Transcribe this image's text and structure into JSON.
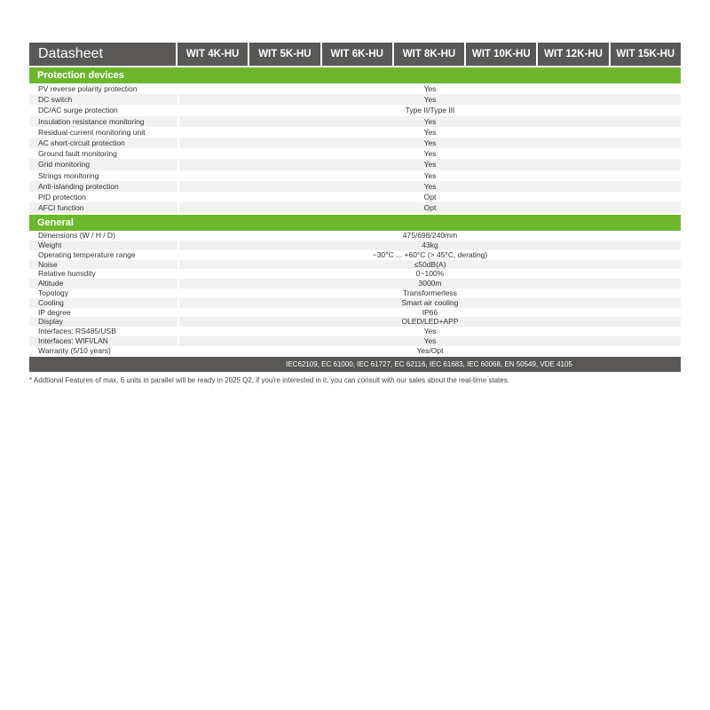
{
  "header": {
    "title": "Datasheet",
    "models": [
      "WIT 4K-HU",
      "WIT 5K-HU",
      "WIT 6K-HU",
      "WIT 8K-HU",
      "WIT 10K-HU",
      "WIT 12K-HU",
      "WIT 15K-HU"
    ]
  },
  "protection": {
    "title": "Protection devices",
    "rows": [
      {
        "label": "PV reverse polarity protection",
        "value": "Yes"
      },
      {
        "label": "DC switch",
        "value": "Yes"
      },
      {
        "label": "DC/AC surge protection",
        "value": "Type II/Type III"
      },
      {
        "label": "Insulation resistance monitoring",
        "value": "Yes"
      },
      {
        "label": "Residual-current monitoring unit",
        "value": "Yes"
      },
      {
        "label": "AC short-circuit protection",
        "value": "Yes"
      },
      {
        "label": "Ground fault monitoring",
        "value": "Yes"
      },
      {
        "label": "Grid monitoring",
        "value": "Yes"
      },
      {
        "label": "Strings monitoring",
        "value": "Yes"
      },
      {
        "label": "Anti-islanding protection",
        "value": "Yes"
      },
      {
        "label": "PID protection",
        "value": "Opt"
      },
      {
        "label": "AFCI function",
        "value": "Opt"
      }
    ]
  },
  "general": {
    "title": "General",
    "rows": [
      {
        "label": "Dimensions (W / H / D)",
        "value": "475/698/240mm"
      },
      {
        "label": "Weight",
        "value": "43kg"
      },
      {
        "label": "Operating temperature range",
        "value": "−30°C ... +60°C  (> 45°C, derating)"
      },
      {
        "label": "Noise",
        "value": "≤50dB(A)"
      },
      {
        "label": "Relative humidity",
        "value": "0~100%"
      },
      {
        "label": "Altitude",
        "value": "3000m"
      },
      {
        "label": "Topology",
        "value": "Transformerless"
      },
      {
        "label": "Cooling",
        "value": "Smart air cooling"
      },
      {
        "label": "IP degree",
        "value": "IP66"
      },
      {
        "label": "Display",
        "value": "OLED/LED+APP"
      },
      {
        "label": "Interfaces: RS485/USB",
        "value": "Yes"
      },
      {
        "label": "Interfaces: WIFI/LAN",
        "value": "Yes"
      },
      {
        "label": "Warranty (5/10 years)",
        "value": "Yes/Opt"
      }
    ]
  },
  "certifications": "IEC62109, EC 61000, IEC 61727, EC 62116, IEC 61683, IEC 60068, EN 50549, VDE 4105",
  "note": "* Addtional Features of max. 6 units in parallel will be ready in 2025 Q2, if you're interested in it, you can consult with our sales about the real-time states.",
  "colors": {
    "header": "#595856",
    "section": "#6db72d"
  }
}
